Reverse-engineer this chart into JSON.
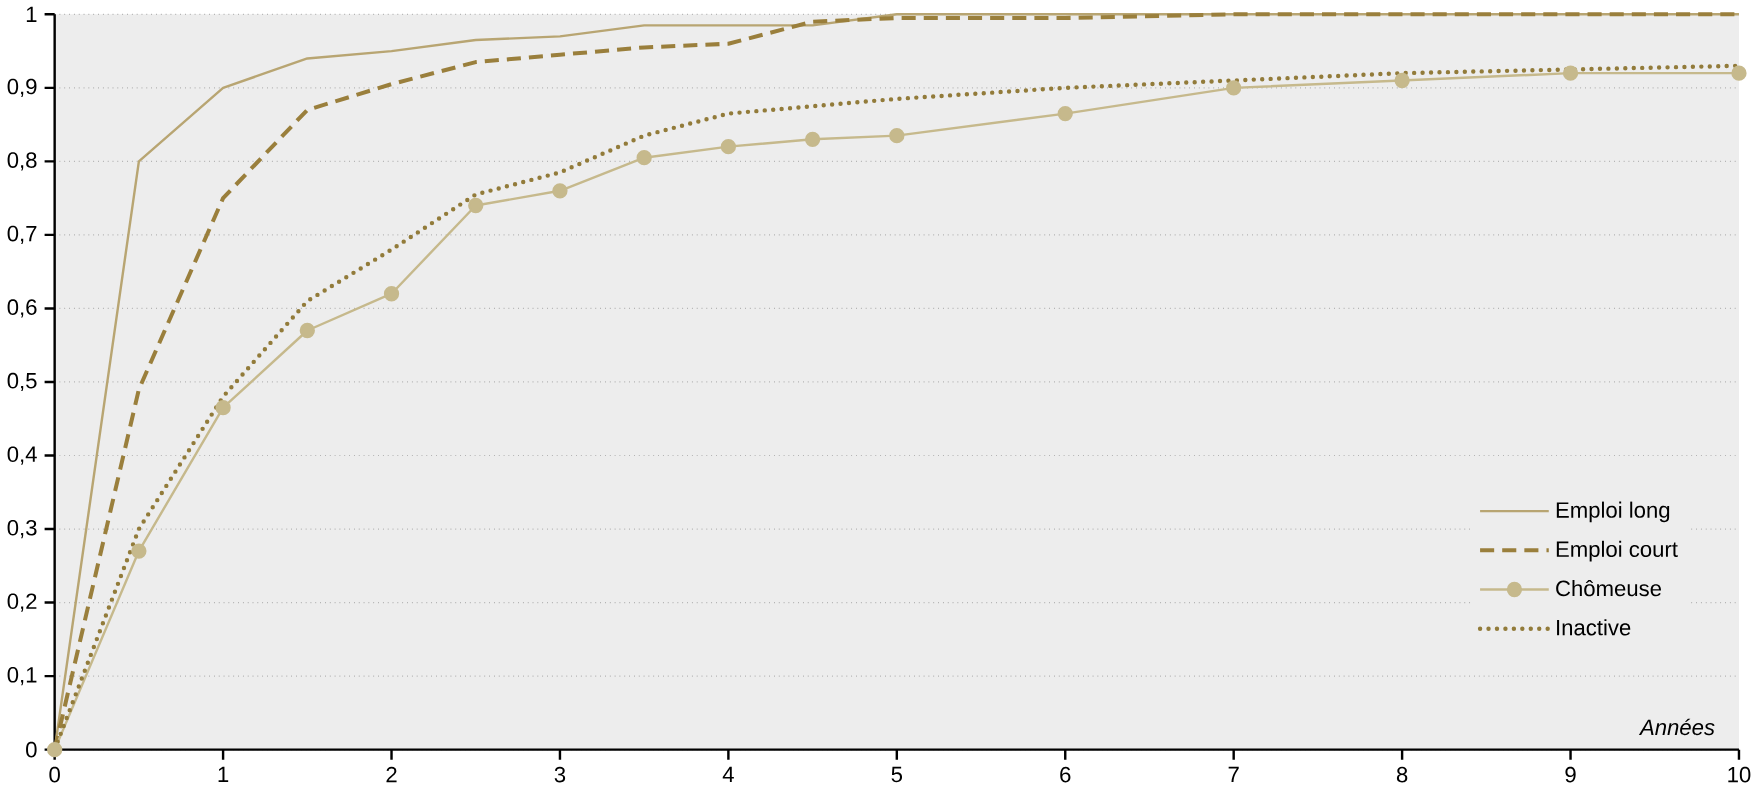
{
  "chart_data": {
    "type": "line",
    "xlabel": "Années",
    "x": [
      0,
      0.5,
      1,
      1.5,
      2,
      2.5,
      3,
      3.5,
      4,
      4.5,
      5,
      6,
      7,
      8,
      9,
      10
    ],
    "series": [
      {
        "name": "Emploi long",
        "color": "#b8a572",
        "line_style": "solid",
        "marker": "none",
        "values": [
          0,
          0.8,
          0.9,
          0.94,
          0.95,
          0.965,
          0.97,
          0.985,
          0.985,
          0.985,
          1,
          1,
          1,
          1,
          1,
          1
        ]
      },
      {
        "name": "Emploi court",
        "color": "#9a7f3c",
        "line_style": "dashed",
        "marker": "none",
        "values": [
          0,
          0.49,
          0.75,
          0.87,
          0.905,
          0.935,
          0.945,
          0.955,
          0.96,
          0.99,
          0.995,
          0.995,
          1,
          1,
          1,
          1
        ]
      },
      {
        "name": "Chômeuse",
        "color": "#c6b98c",
        "line_style": "solid",
        "marker": "circle",
        "values": [
          0,
          0.27,
          0.465,
          0.57,
          0.62,
          0.74,
          0.76,
          0.805,
          0.82,
          0.83,
          0.835,
          0.865,
          0.9,
          0.91,
          0.92,
          0.92
        ]
      },
      {
        "name": "Inactive",
        "color": "#927b3a",
        "line_style": "dotted",
        "marker": "none",
        "values": [
          0,
          0.3,
          0.48,
          0.61,
          0.68,
          0.755,
          0.785,
          0.835,
          0.865,
          0.875,
          0.885,
          0.9,
          0.91,
          0.92,
          0.925,
          0.93
        ]
      }
    ],
    "xlim": [
      0,
      10
    ],
    "ylim": [
      0,
      1
    ],
    "xticks": [
      0,
      1,
      2,
      3,
      4,
      5,
      6,
      7,
      8,
      9,
      10
    ],
    "yticks": [
      0,
      {
        "value": 0.1,
        "label": "0,1"
      },
      {
        "value": 0.2,
        "label": "0,2"
      },
      {
        "value": 0.3,
        "label": "0,3"
      },
      {
        "value": 0.4,
        "label": "0,4"
      },
      {
        "value": 0.5,
        "label": "0,5"
      },
      {
        "value": 0.6,
        "label": "0,6"
      },
      {
        "value": 0.7,
        "label": "0,7"
      },
      {
        "value": 0.8,
        "label": "0,8"
      },
      {
        "value": 0.9,
        "label": "0,9"
      },
      1
    ],
    "grid": "y",
    "legend": "bottom right"
  }
}
